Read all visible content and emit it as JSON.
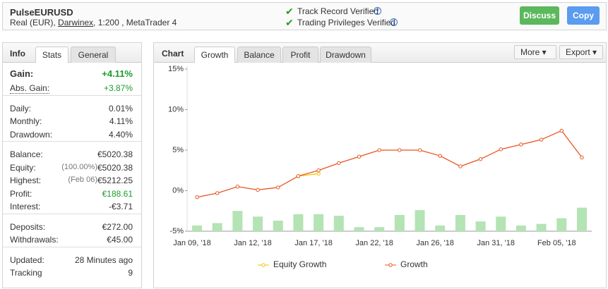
{
  "header": {
    "title": "PulseEURUSD",
    "account": "Real (EUR),",
    "broker": "Darwinex",
    "details": ", 1:200 , MetaTrader 4",
    "verification": [
      "Track Record Verified",
      "Trading Privileges Verified"
    ],
    "buttons": [
      "Discuss",
      "Copy"
    ]
  },
  "info_panel": {
    "title": "Info",
    "tabs": [
      "Stats",
      "General"
    ],
    "groups": [
      [
        {
          "label": "Gain:",
          "value": "+4.11%"
        },
        {
          "label": "Abs. Gain:",
          "value": "+3.87%"
        }
      ],
      [
        {
          "label": "Daily:",
          "value": "0.01%"
        },
        {
          "label": "Monthly:",
          "value": "4.11%"
        },
        {
          "label": "Drawdown:",
          "value": "4.40%"
        }
      ],
      [
        {
          "label": "Balance:",
          "value": "€5020.38"
        },
        {
          "label": "Equity:",
          "note": "(100.00%)",
          "value": "€5020.38"
        },
        {
          "label": "Highest:",
          "note": "(Feb 06)",
          "value": "€5212.25"
        },
        {
          "label": "Profit:",
          "value": "€188.61"
        },
        {
          "label": "Interest:",
          "value": "-€3.71"
        }
      ],
      [
        {
          "label": "Deposits:",
          "value": "€272.00"
        },
        {
          "label": "Withdrawals:",
          "value": "€45.00"
        }
      ],
      [
        {
          "label": "Updated:",
          "value": "28 Minutes ago"
        },
        {
          "label": "Tracking",
          "value": "9"
        }
      ]
    ]
  },
  "chart_panel": {
    "title": "Chart",
    "tabs": [
      "Growth",
      "Balance",
      "Profit",
      "Drawdown"
    ],
    "menus": [
      "More",
      "Export"
    ]
  },
  "chart_data": {
    "type": "line",
    "categories": [
      "Jan 09, '18",
      null,
      null,
      "Jan 12, '18",
      null,
      null,
      "Jan 17, '18",
      null,
      null,
      "Jan 22, '18",
      null,
      null,
      "Jan 26, '18",
      null,
      null,
      "Jan 31, '18",
      null,
      null,
      "Feb 05, '18",
      null
    ],
    "series": [
      {
        "name": "Equity Growth",
        "color": "#f2c200",
        "values": [
          null,
          null,
          null,
          null,
          null,
          1.8,
          2.1,
          null,
          null,
          null,
          null,
          null,
          null,
          null,
          null,
          null,
          null,
          null,
          null,
          null
        ]
      },
      {
        "name": "Growth",
        "color": "#e8541e",
        "values": [
          -0.8,
          -0.3,
          0.5,
          0.1,
          0.4,
          1.8,
          2.5,
          3.4,
          4.2,
          5.0,
          5.0,
          5.0,
          4.3,
          3.0,
          3.9,
          5.1,
          5.7,
          6.3,
          7.4,
          4.1
        ]
      },
      {
        "type": "bar",
        "color": "#b4e3b4",
        "values": [
          -4.3,
          -4.0,
          -2.5,
          -3.2,
          -3.7,
          -2.9,
          -2.9,
          -3.1,
          -4.5,
          -4.5,
          -3.0,
          -2.4,
          -4.3,
          -3.0,
          -3.8,
          -3.2,
          -4.3,
          -4.1,
          -3.4,
          -2.1
        ]
      }
    ],
    "ylim": [
      -5,
      15
    ],
    "yticks": [
      {
        "value": -5,
        "label": "-5%"
      },
      {
        "value": 0,
        "label": "0%"
      },
      {
        "value": 5,
        "label": "5%"
      },
      {
        "value": 10,
        "label": "10%"
      },
      {
        "value": 15,
        "label": "15%"
      }
    ],
    "legend": "bottom"
  }
}
